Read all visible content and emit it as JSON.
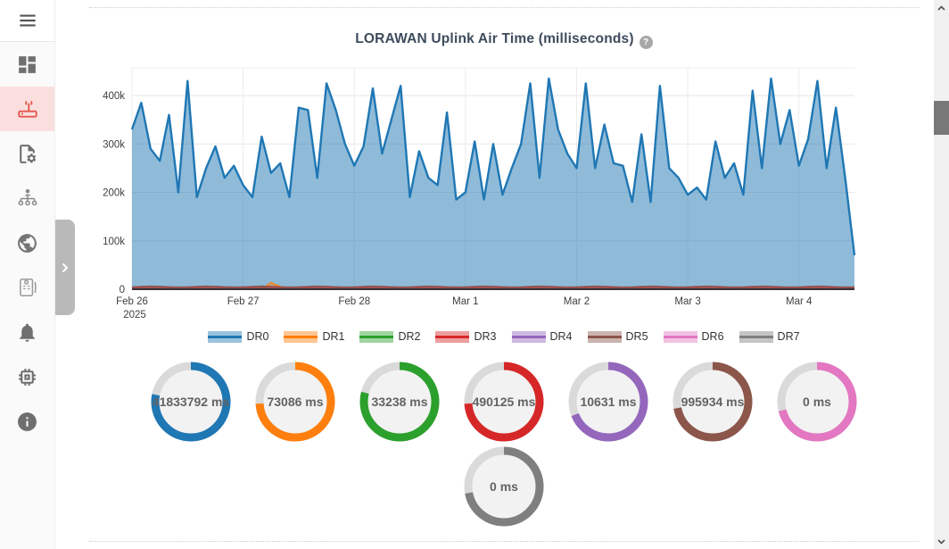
{
  "sidebar": {
    "menu_button": {
      "icon": "hamburger-icon"
    },
    "items": [
      {
        "id": "dashboard",
        "icon": "dashboard-icon",
        "active": false
      },
      {
        "id": "gateways",
        "icon": "router-icon",
        "active": true
      },
      {
        "id": "profiles",
        "icon": "file-gear-icon",
        "active": false
      },
      {
        "id": "organization",
        "icon": "org-chart-icon",
        "active": false
      },
      {
        "id": "network",
        "icon": "globe-icon",
        "active": false
      },
      {
        "id": "packet-logs",
        "icon": "log-card-icon",
        "active": false
      },
      {
        "id": "notifications",
        "icon": "bell-icon",
        "active": false
      },
      {
        "id": "devices",
        "icon": "chip-icon",
        "active": false
      },
      {
        "id": "about",
        "icon": "info-icon",
        "active": false
      }
    ]
  },
  "chart": {
    "title": "LORAWAN Uplink Air Time (milliseconds)",
    "help_icon_label": "?"
  },
  "chart_data": {
    "type": "area",
    "title": "LORAWAN Uplink Air Time (milliseconds)",
    "xlabel": "",
    "ylabel": "",
    "ylim": [
      0,
      457000
    ],
    "y_ticks": [
      "0",
      "100k",
      "200k",
      "300k",
      "400k"
    ],
    "x_ticks": [
      "Feb 26",
      "Feb 27",
      "Feb 28",
      "Mar 1",
      "Mar 2",
      "Mar 3",
      "Mar 4"
    ],
    "x_year": "2025",
    "grid": true,
    "legend_position": "bottom",
    "series": [
      {
        "name": "DR0",
        "color": "#1f77b4",
        "values": [
          330000,
          385000,
          290000,
          265000,
          360000,
          200000,
          430000,
          190000,
          250000,
          295000,
          230000,
          255000,
          215000,
          190000,
          315000,
          240000,
          260000,
          190000,
          375000,
          370000,
          230000,
          425000,
          370000,
          300000,
          255000,
          295000,
          415000,
          280000,
          350000,
          420000,
          190000,
          285000,
          230000,
          215000,
          365000,
          185000,
          200000,
          305000,
          185000,
          300000,
          195000,
          250000,
          300000,
          425000,
          230000,
          435000,
          330000,
          280000,
          250000,
          425000,
          250000,
          340000,
          260000,
          255000,
          180000,
          320000,
          180000,
          420000,
          250000,
          230000,
          195000,
          210000,
          185000,
          305000,
          230000,
          260000,
          195000,
          410000,
          250000,
          435000,
          300000,
          370000,
          255000,
          310000,
          430000,
          250000,
          375000,
          230000,
          70000
        ]
      },
      {
        "name": "DR1",
        "color": "#ff7f0e",
        "values": [
          1000,
          1000,
          1000,
          1000,
          1000,
          1000,
          1000,
          1000,
          1000,
          1000,
          1000,
          1000,
          1000,
          1000,
          1000,
          14000,
          6000,
          1000,
          1000,
          1000,
          1000,
          1000,
          1000,
          1000,
          1000,
          1000,
          1000,
          1000,
          1000,
          1000,
          1000,
          1000,
          1000,
          1000,
          1000,
          1000,
          1000,
          1000,
          1000,
          1000,
          1000,
          1000,
          1000,
          1000,
          1000,
          1000,
          1000,
          1000,
          1000,
          1000,
          1000,
          1000,
          1000,
          1000,
          1000,
          1000,
          1000,
          1000,
          1000,
          1000,
          1000,
          1000,
          1000,
          1000,
          1000,
          1000,
          1000,
          1000,
          1000,
          1000,
          1000,
          1000,
          1000,
          1000,
          3000,
          2600,
          1000,
          1000,
          1000
        ]
      },
      {
        "name": "DR2",
        "color": "#2ca02c",
        "values": [
          800,
          800,
          800,
          800,
          800,
          800,
          800,
          800,
          800,
          800,
          800,
          800,
          800,
          800,
          7000,
          800,
          800,
          800,
          800,
          800,
          800,
          800,
          800,
          800,
          800,
          800,
          800,
          800,
          800,
          800,
          800,
          800,
          800,
          800,
          800,
          800,
          800,
          800,
          800,
          800,
          800,
          800,
          800,
          800,
          800,
          800,
          800,
          800,
          800,
          800,
          800,
          800,
          800,
          800,
          800,
          800,
          800,
          800,
          800,
          800,
          800,
          800,
          800,
          800,
          800,
          800,
          800,
          800,
          800,
          800,
          800,
          800,
          800,
          800,
          800,
          800,
          800,
          800,
          800
        ]
      },
      {
        "name": "DR3",
        "color": "#d62728",
        "values": [
          3500,
          3500,
          3500,
          3500,
          3500,
          3500,
          3500,
          3500,
          3500,
          3500,
          3500,
          3500,
          3500,
          3500,
          3500,
          3500,
          3500,
          3500,
          3500,
          3500,
          3500,
          3500,
          3500,
          3500,
          3500,
          3500,
          3500,
          3500,
          3500,
          3500,
          3500,
          3500,
          3500,
          3500,
          3500,
          3500,
          3500,
          3500,
          3500,
          3500,
          3500,
          3500,
          3500,
          3500,
          3500,
          3500,
          3500,
          3500,
          3500,
          3500,
          3500,
          3500,
          3500,
          3500,
          3500,
          3500,
          3500,
          3500,
          3500,
          3500,
          3500,
          3500,
          3500,
          3500,
          3500,
          3500,
          3500,
          3500,
          3500,
          3500,
          3500,
          3500,
          3500,
          3500,
          3500,
          3500,
          3500,
          3500,
          3500
        ]
      },
      {
        "name": "DR4",
        "color": "#9467bd",
        "values": [
          1500,
          1500,
          1500,
          1500,
          1500,
          1500,
          1500,
          1500,
          1500,
          1500,
          1500,
          1500,
          1500,
          1500,
          1500,
          1500,
          1500,
          1500,
          1500,
          1500,
          1500,
          1500,
          1500,
          1500,
          1500,
          1500,
          1500,
          1500,
          1500,
          1500,
          1500,
          1500,
          1500,
          1500,
          1500,
          1500,
          1500,
          1500,
          1500,
          1500,
          1500,
          1500,
          1500,
          1500,
          1500,
          1500,
          1500,
          1500,
          1500,
          1500,
          1500,
          1500,
          1500,
          1500,
          1500,
          1500,
          1500,
          1500,
          1500,
          1500,
          1500,
          1500,
          1500,
          1500,
          1500,
          1500,
          1500,
          1500,
          1500,
          1500,
          1500,
          1500,
          1500,
          1500,
          1500,
          1500,
          1500,
          1500,
          1500
        ]
      },
      {
        "name": "DR5",
        "color": "#8c564b",
        "values": [
          5000,
          5800,
          6500,
          6000,
          5200,
          4600,
          5000,
          5800,
          6500,
          6000,
          5200,
          4600,
          5000,
          5800,
          6500,
          6000,
          5200,
          4600,
          5000,
          5800,
          6500,
          6000,
          5200,
          4600,
          5000,
          5800,
          6500,
          6000,
          5200,
          4600,
          5000,
          5800,
          6500,
          6000,
          5200,
          4600,
          5000,
          5800,
          6500,
          6000,
          5200,
          4600,
          5000,
          5800,
          6500,
          6000,
          5200,
          4600,
          5000,
          5800,
          6500,
          6000,
          5200,
          4600,
          5000,
          5800,
          6500,
          6000,
          5200,
          4600,
          5000,
          5800,
          6500,
          6000,
          5200,
          4600,
          5000,
          5800,
          6500,
          6000,
          5200,
          4600,
          5000,
          5800,
          6500,
          6000,
          5200,
          4600,
          5000
        ]
      },
      {
        "name": "DR6",
        "color": "#e377c2",
        "values": [
          600,
          600,
          600,
          600,
          600,
          600,
          600,
          600,
          600,
          600,
          600,
          600,
          600,
          600,
          600,
          600,
          600,
          600,
          600,
          600,
          600,
          600,
          600,
          600,
          600,
          600,
          600,
          600,
          600,
          600,
          600,
          600,
          600,
          600,
          600,
          600,
          600,
          600,
          600,
          600,
          600,
          600,
          600,
          600,
          600,
          600,
          600,
          600,
          600,
          600,
          600,
          600,
          600,
          600,
          600,
          600,
          600,
          600,
          600,
          600,
          600,
          600,
          600,
          600,
          600,
          600,
          600,
          600,
          600,
          600,
          600,
          600,
          600,
          600,
          600,
          600,
          600,
          600,
          600
        ]
      },
      {
        "name": "DR7",
        "color": "#7f7f7f",
        "values": [
          400,
          400,
          400,
          400,
          400,
          400,
          400,
          400,
          400,
          400,
          400,
          400,
          400,
          400,
          400,
          400,
          400,
          400,
          400,
          400,
          400,
          400,
          400,
          400,
          400,
          400,
          400,
          400,
          400,
          400,
          400,
          400,
          400,
          400,
          400,
          400,
          400,
          400,
          400,
          400,
          400,
          400,
          400,
          400,
          400,
          400,
          400,
          400,
          400,
          400,
          400,
          400,
          400,
          400,
          400,
          400,
          400,
          400,
          400,
          400,
          400,
          400,
          400,
          400,
          400,
          400,
          400,
          400,
          400,
          400,
          400,
          400,
          400,
          400,
          400,
          400,
          400,
          400,
          400
        ]
      }
    ]
  },
  "gauges": [
    {
      "name": "DR0",
      "label": "41833792 ms",
      "color": "#1f77b4",
      "percent": 0.78
    },
    {
      "name": "DR1",
      "label": "73086 ms",
      "color": "#ff7f0e",
      "percent": 0.74
    },
    {
      "name": "DR2",
      "label": "33238 ms",
      "color": "#2ca02c",
      "percent": 0.79
    },
    {
      "name": "DR3",
      "label": "490125 ms",
      "color": "#d62728",
      "percent": 0.74
    },
    {
      "name": "DR4",
      "label": "10631 ms",
      "color": "#9467bd",
      "percent": 0.69
    },
    {
      "name": "DR5",
      "label": "995934 ms",
      "color": "#8c564b",
      "percent": 0.72
    },
    {
      "name": "DR6",
      "label": "0 ms",
      "color": "#e377c2",
      "percent": 0.71
    },
    {
      "name": "DR7",
      "label": "0 ms",
      "color": "#7f7f7f",
      "percent": 0.72
    }
  ],
  "colors": {
    "active_item_bg": "#fbdfdf",
    "active_item_icon": "#e4574a",
    "title_text": "#3d4b5d",
    "gauge_track": "#dadada",
    "gauge_inner": "#f2f2f2"
  }
}
